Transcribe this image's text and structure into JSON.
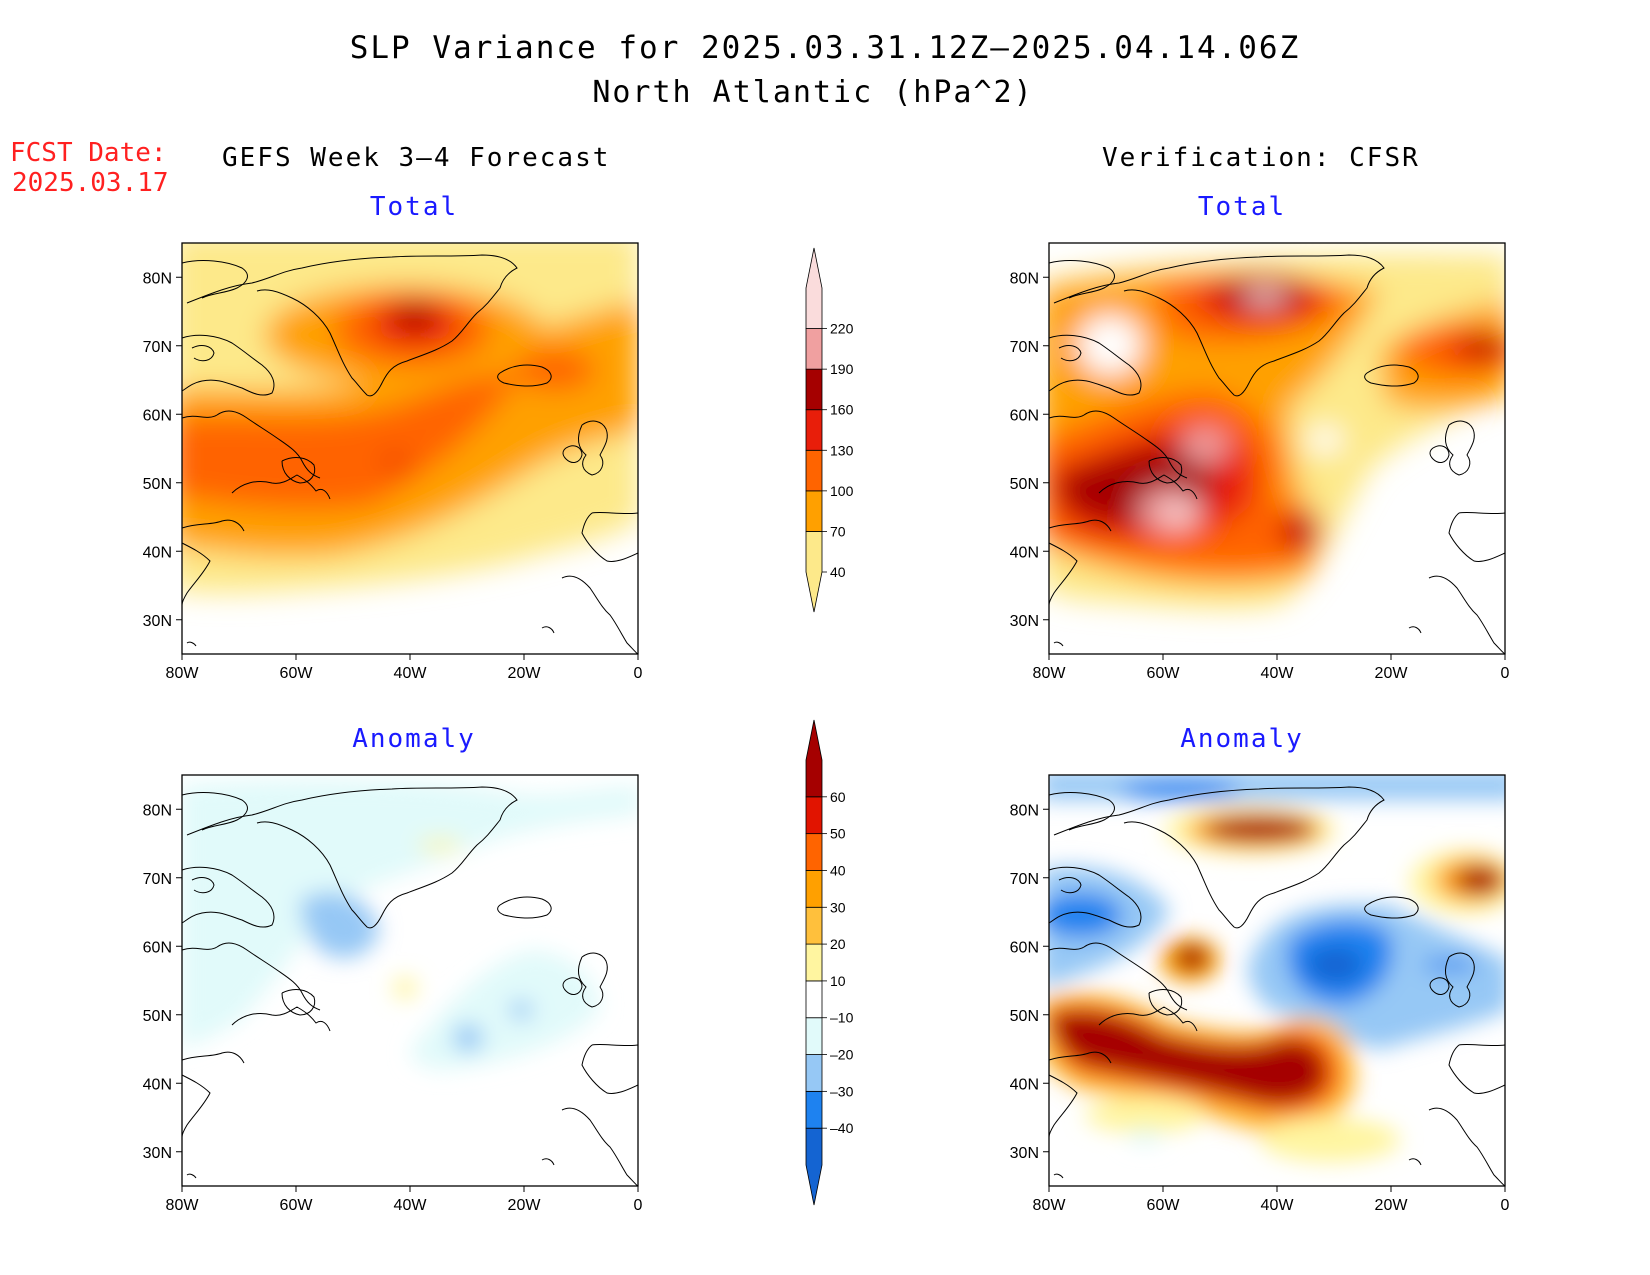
{
  "title": {
    "line1": "SLP Variance for 2025.03.31.12Z–2025.04.14.06Z",
    "line2": "North Atlantic (hPa^2)"
  },
  "fcst_date": {
    "label": "FCST Date:",
    "value": "2025.03.17"
  },
  "columns": {
    "left": "GEFS Week 3–4 Forecast",
    "right": "Verification: CFSR"
  },
  "panels": {
    "top_left": "Total",
    "top_right": "Total",
    "bottom_left": "Anomaly",
    "bottom_right": "Anomaly"
  },
  "axes": {
    "lat_labels": [
      "80N",
      "70N",
      "60N",
      "50N",
      "40N",
      "30N"
    ],
    "lat_values": [
      80,
      70,
      60,
      50,
      40,
      30
    ],
    "lon_labels": [
      "80W",
      "60W",
      "40W",
      "20W",
      "0"
    ],
    "lon_values": [
      -80,
      -60,
      -40,
      -20,
      0
    ],
    "lat_range": [
      25,
      85
    ],
    "lon_range": [
      -80,
      0
    ]
  },
  "colorbars": {
    "total": {
      "levels": [
        "40",
        "70",
        "100",
        "130",
        "160",
        "190",
        "220"
      ],
      "colors": [
        "#fde98a",
        "#ffa000",
        "#ff6400",
        "#e81e0a",
        "#a50000",
        "#f0a0a0",
        "#fadcdc"
      ]
    },
    "anomaly": {
      "levels": [
        "–40",
        "–30",
        "–20",
        "–10",
        "10",
        "20",
        "30",
        "40",
        "50",
        "60"
      ],
      "colors": [
        "#1464d2",
        "#1e82f0",
        "#96c8f5",
        "#e1fafa",
        "#ffffff",
        "#fff5a0",
        "#ffc03c",
        "#ffa000",
        "#ff6400",
        "#e11400",
        "#a50000"
      ]
    }
  }
}
